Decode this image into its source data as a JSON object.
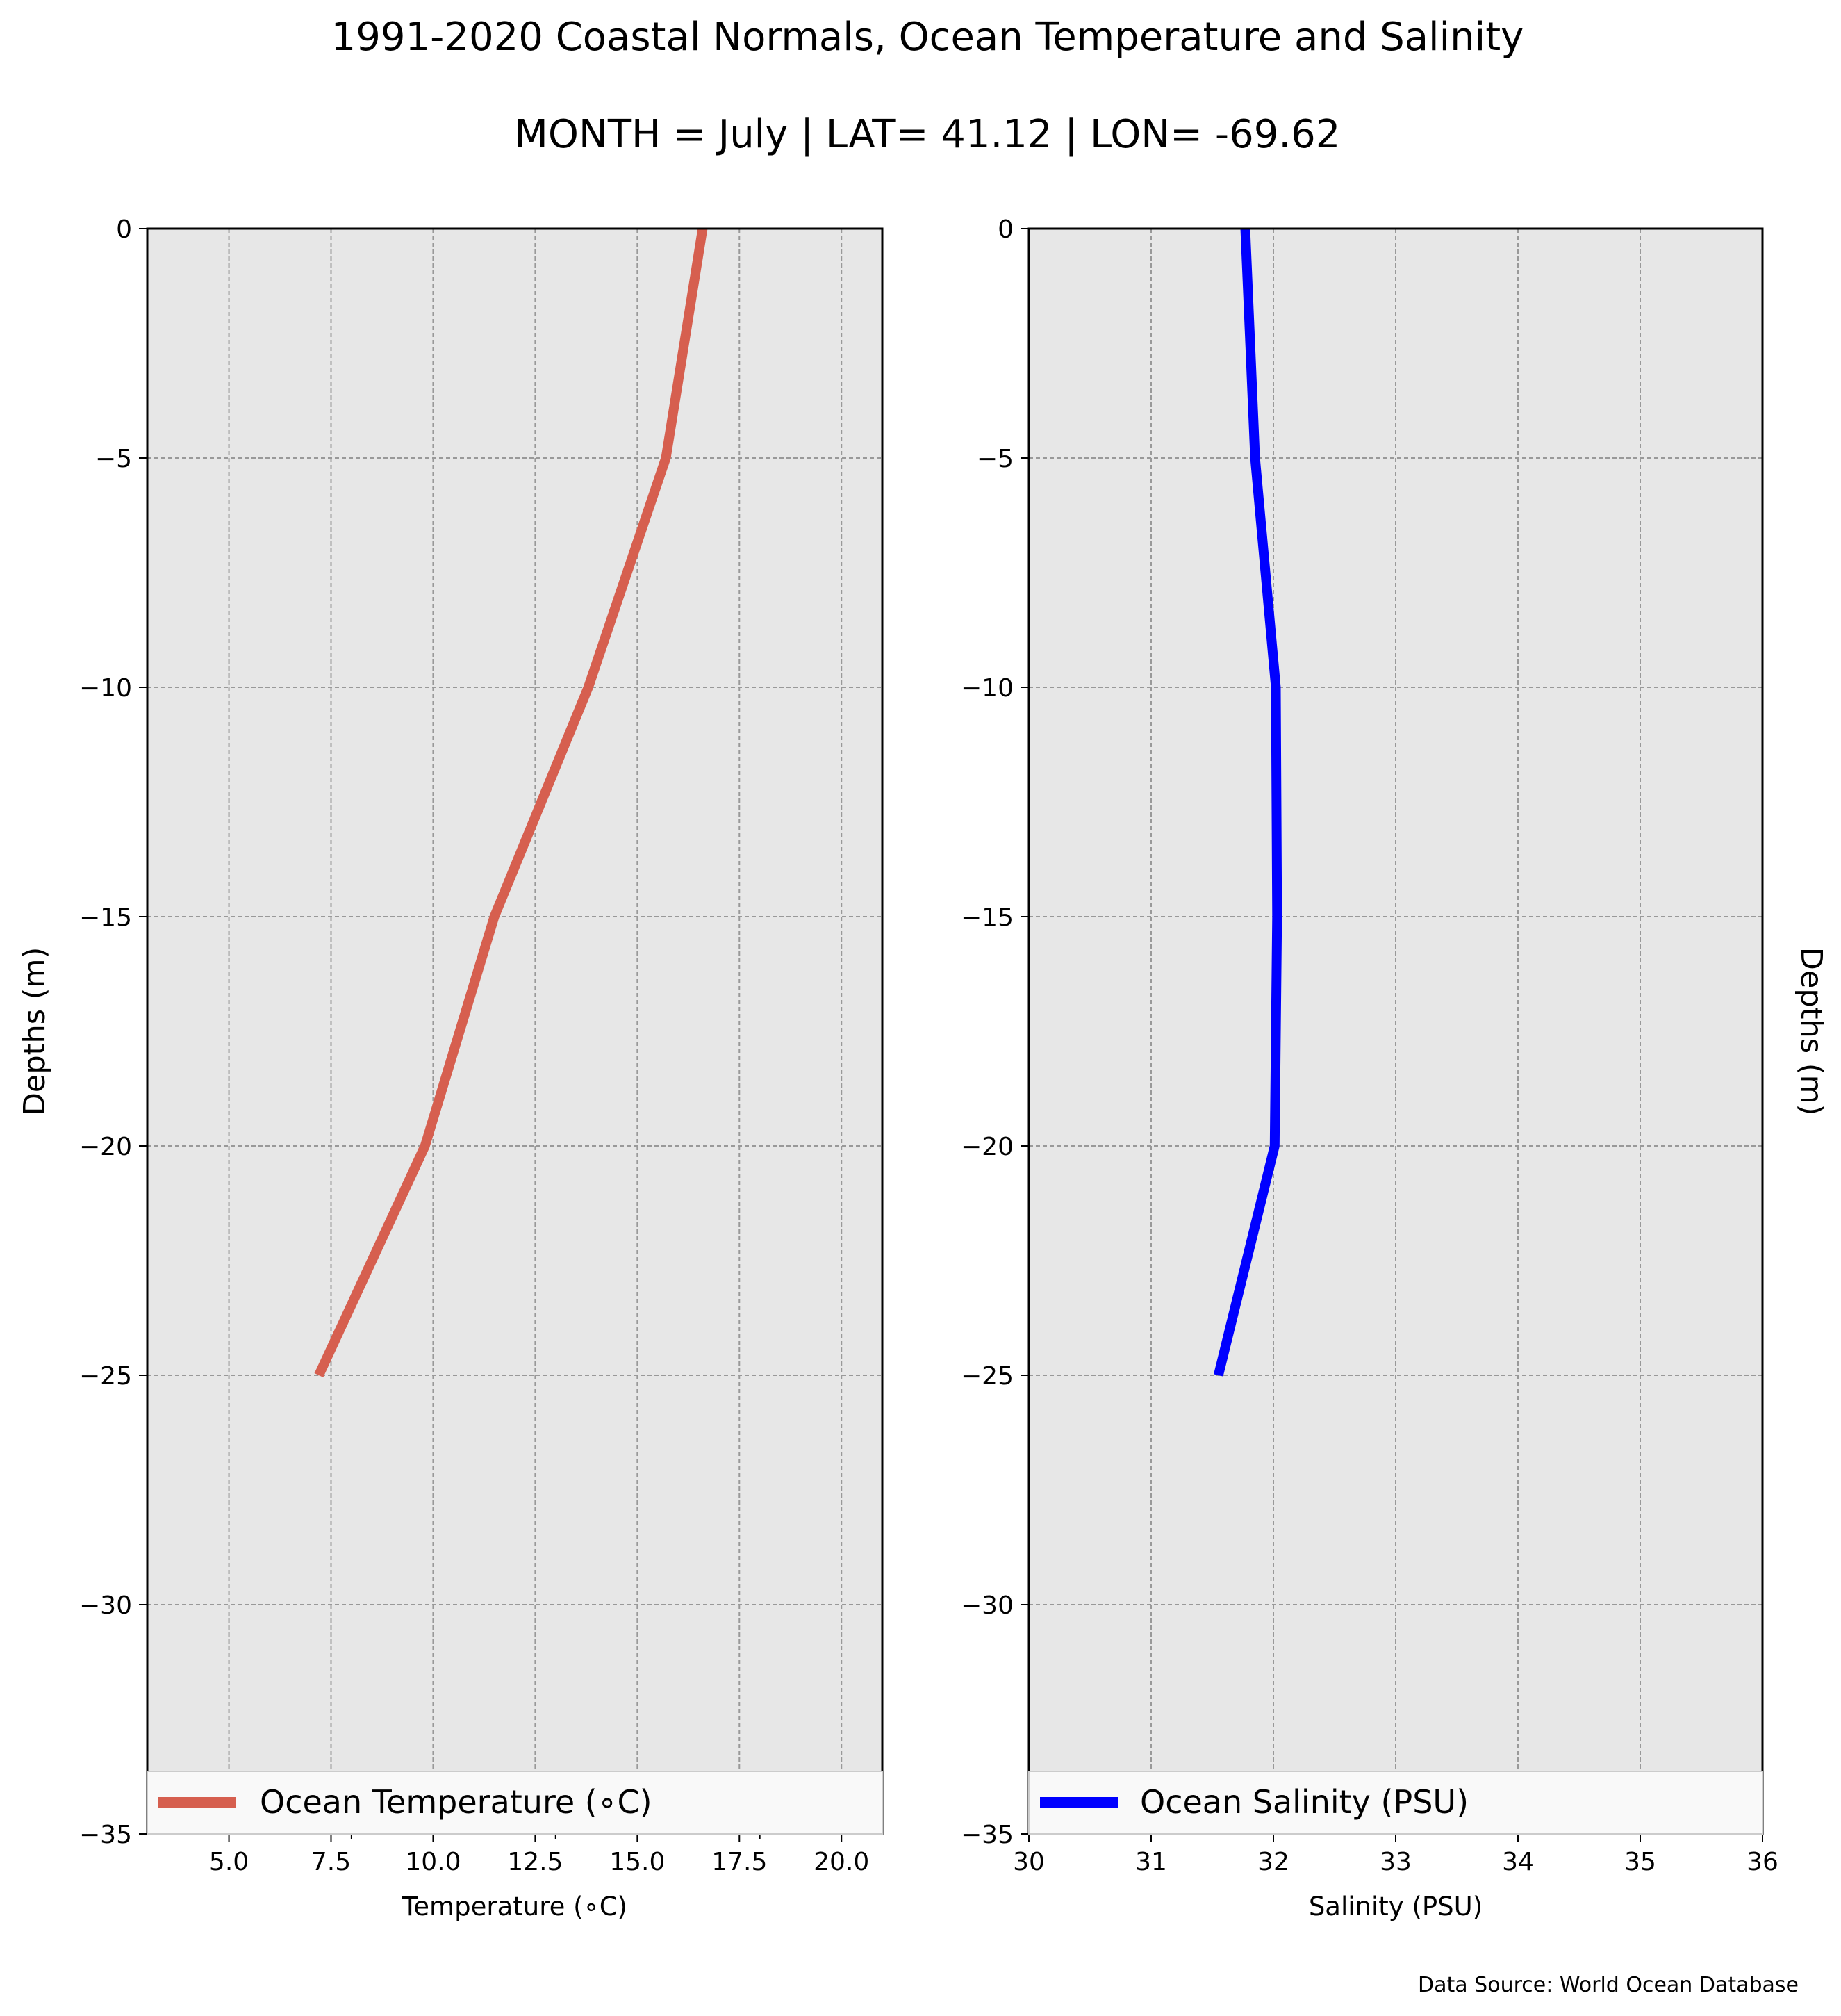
{
  "title": "1991-2020 Coastal Normals, Ocean Temperature and Salinity",
  "subtitle": "MONTH = July | LAT= 41.12 | LON= -69.62",
  "source_note": "Data Source: World Ocean Database",
  "chart_data": [
    {
      "type": "line",
      "xlabel": "Temperature (∘C)",
      "ylabel": "Depths (m)",
      "xlim": [
        3,
        21
      ],
      "ylim": [
        -35,
        0
      ],
      "x_ticks": [
        5.0,
        7.5,
        10.0,
        12.5,
        15.0,
        17.5,
        20.0
      ],
      "x_tick_labels": [
        "5.0",
        "7.5",
        "10.0",
        "12.5",
        "15.0",
        "17.5",
        "20.0"
      ],
      "y_ticks": [
        0,
        -5,
        -10,
        -15,
        -20,
        -25,
        -30,
        -35
      ],
      "y_tick_labels": [
        "0",
        "−5",
        "−10",
        "−15",
        "−20",
        "−25",
        "−30",
        "−35"
      ],
      "grid": true,
      "legend": "lower center",
      "series": [
        {
          "name": "Ocean Temperature (∘C)",
          "color": "#d65f4f",
          "x": [
            16.6,
            15.7,
            13.8,
            11.5,
            9.8,
            7.2
          ],
          "y": [
            0,
            -5,
            -10,
            -15,
            -20,
            -25
          ]
        }
      ]
    },
    {
      "type": "line",
      "xlabel": "Salinity (PSU)",
      "ylabel": "Depths (m)",
      "xlim": [
        30,
        36
      ],
      "ylim": [
        -35,
        0
      ],
      "x_ticks": [
        30,
        31,
        32,
        33,
        34,
        35,
        36
      ],
      "x_tick_labels": [
        "30",
        "31",
        "32",
        "33",
        "34",
        "35",
        "36"
      ],
      "y_ticks": [
        0,
        -5,
        -10,
        -15,
        -20,
        -25,
        -30,
        -35
      ],
      "y_tick_labels": [
        "0",
        "−5",
        "−10",
        "−15",
        "−20",
        "−25",
        "−30",
        "−35"
      ],
      "grid": true,
      "legend": "lower center",
      "series": [
        {
          "name": "Ocean Salinity (PSU)",
          "color": "#0000ff",
          "x": [
            31.77,
            31.85,
            32.02,
            32.03,
            32.01,
            31.55
          ],
          "y": [
            0,
            -5,
            -10,
            -15,
            -20,
            -25
          ]
        }
      ]
    }
  ]
}
